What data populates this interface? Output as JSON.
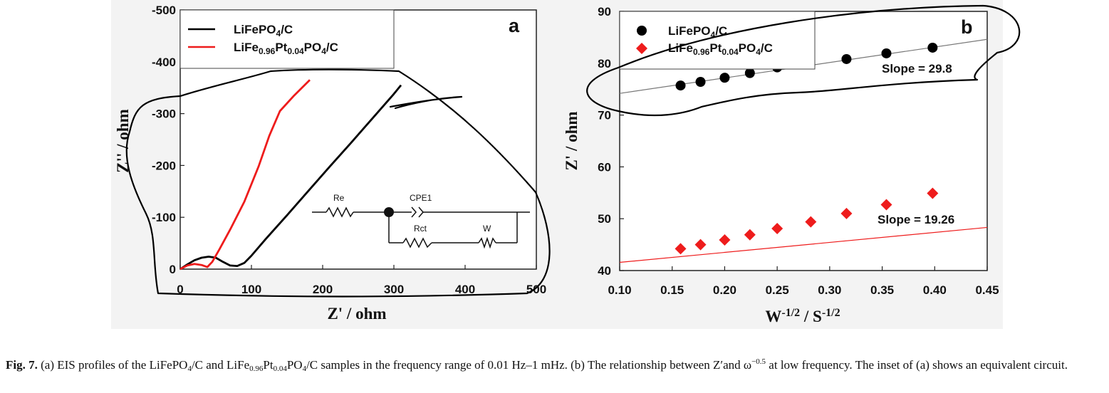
{
  "chart_data": [
    {
      "type": "line",
      "panel_label": "a",
      "xlabel": "Z' / ohm",
      "ylabel": "Z'' / ohm",
      "xlim": [
        0,
        500
      ],
      "ylim": [
        0,
        -500
      ],
      "x_ticks": [
        "0",
        "100",
        "200",
        "300",
        "400",
        "500"
      ],
      "y_ticks": [
        "0",
        "-100",
        "-200",
        "-300",
        "-400",
        "-500"
      ],
      "legend_position": "top-left",
      "series": [
        {
          "name": "LiFePO4/C",
          "color": "#000000",
          "x": [
            0,
            10,
            20,
            30,
            40,
            50,
            60,
            70,
            80,
            90,
            100,
            120,
            150,
            180,
            210,
            240,
            270,
            300,
            310
          ],
          "y": [
            0,
            -9,
            -17,
            -22,
            -24,
            -22,
            -14,
            -7,
            -6,
            -12,
            -26,
            -58,
            -104,
            -151,
            -198,
            -244,
            -291,
            -338,
            -355
          ]
        },
        {
          "name": "LiFe0.96Pt0.04PO4/C",
          "color": "#ee1c1c",
          "x": [
            0,
            10,
            20,
            30,
            38,
            45,
            55,
            70,
            90,
            110,
            125,
            140,
            160,
            182
          ],
          "y": [
            0,
            -7,
            -10,
            -8,
            -4,
            -14,
            -38,
            -76,
            -130,
            -198,
            -257,
            -305,
            -335,
            -365
          ]
        }
      ],
      "inset_circuit_labels": [
        "Re",
        "CPE1",
        "Rct",
        "W"
      ]
    },
    {
      "type": "scatter",
      "panel_label": "b",
      "xlabel": "W-1/2 / S-1/2",
      "ylabel": "Z' / ohm",
      "xlim": [
        0.1,
        0.45
      ],
      "ylim": [
        40,
        90
      ],
      "x_ticks": [
        "0.10",
        "0.15",
        "0.20",
        "0.25",
        "0.30",
        "0.35",
        "0.40",
        "0.45"
      ],
      "y_ticks": [
        "40",
        "50",
        "60",
        "70",
        "80",
        "90"
      ],
      "legend_position": "top-left",
      "series": [
        {
          "name": "LiFePO4/C",
          "marker": "circle",
          "color": "#000000",
          "fit_color": "#777777",
          "x": [
            0.158,
            0.177,
            0.2,
            0.224,
            0.25,
            0.316,
            0.354,
            0.398
          ],
          "y": [
            75.7,
            76.4,
            77.2,
            78.1,
            79.2,
            80.8,
            81.9,
            83.0
          ],
          "fit": {
            "slope": 29.8,
            "intercept": 71.2
          },
          "annotation": "Slope = 29.8"
        },
        {
          "name": "LiFe0.96Pt0.04PO4/C",
          "marker": "diamond",
          "color": "#ee1c1c",
          "fit_color": "#ee1c1c",
          "x": [
            0.158,
            0.177,
            0.2,
            0.224,
            0.25,
            0.282,
            0.316,
            0.354,
            0.398
          ],
          "y": [
            44.2,
            45.0,
            45.9,
            46.9,
            48.1,
            49.4,
            51.0,
            52.7,
            54.9
          ],
          "fit": {
            "slope": 19.26,
            "intercept": 39.65
          },
          "annotation": "Slope = 19.26"
        }
      ]
    }
  ],
  "caption": {
    "label": "Fig. 7.",
    "part1": " (a) EIS profiles of the LiFePO",
    "s1": "4",
    "part2": "/C and LiFe",
    "s2": "0.96",
    "part3": "Pt",
    "s3": "0.04",
    "part4": "PO",
    "s4": "4",
    "part5": "/C samples in the frequency range of 0.01 Hz–1 mHz. (b) The relationship between Z′and ω",
    "sup": "−0.5",
    "part6": " at low frequency. The inset of (a) shows an equivalent circuit."
  },
  "colors": {
    "black_series": "#000000",
    "red_series": "#ee1c1c",
    "background": "#f3f3f3",
    "annotation_ink": "#000000"
  }
}
